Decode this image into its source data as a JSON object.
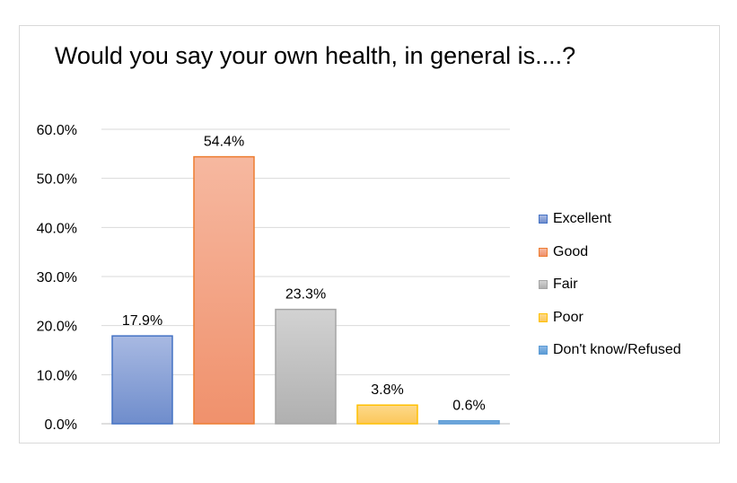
{
  "chart_data": {
    "type": "bar",
    "title": "Would you say your own health, in general is....?",
    "categories": [
      "Excellent",
      "Good",
      "Fair",
      "Poor",
      "Don't know/Refused"
    ],
    "values": [
      17.9,
      54.4,
      23.3,
      3.8,
      0.6
    ],
    "data_labels": [
      "17.9%",
      "54.4%",
      "23.3%",
      "3.8%",
      "0.6%"
    ],
    "ylim": [
      0,
      60
    ],
    "yticks": [
      "0.0%",
      "10.0%",
      "20.0%",
      "30.0%",
      "40.0%",
      "50.0%",
      "60.0%"
    ],
    "grid": true,
    "legend_position": "right",
    "colors": {
      "fills": [
        [
          "#a8b9e2",
          "#6f8dcc"
        ],
        [
          "#f6b8a0",
          "#f0916c"
        ],
        [
          "#d2d2d2",
          "#b0b0b0"
        ],
        [
          "#fdd98a",
          "#fcc75a"
        ],
        [
          "#8bb8e6",
          "#5b9bd5"
        ]
      ],
      "strokes": [
        "#4472c4",
        "#ed7d31",
        "#a5a5a5",
        "#ffc000",
        "#5b9bd5"
      ]
    }
  }
}
